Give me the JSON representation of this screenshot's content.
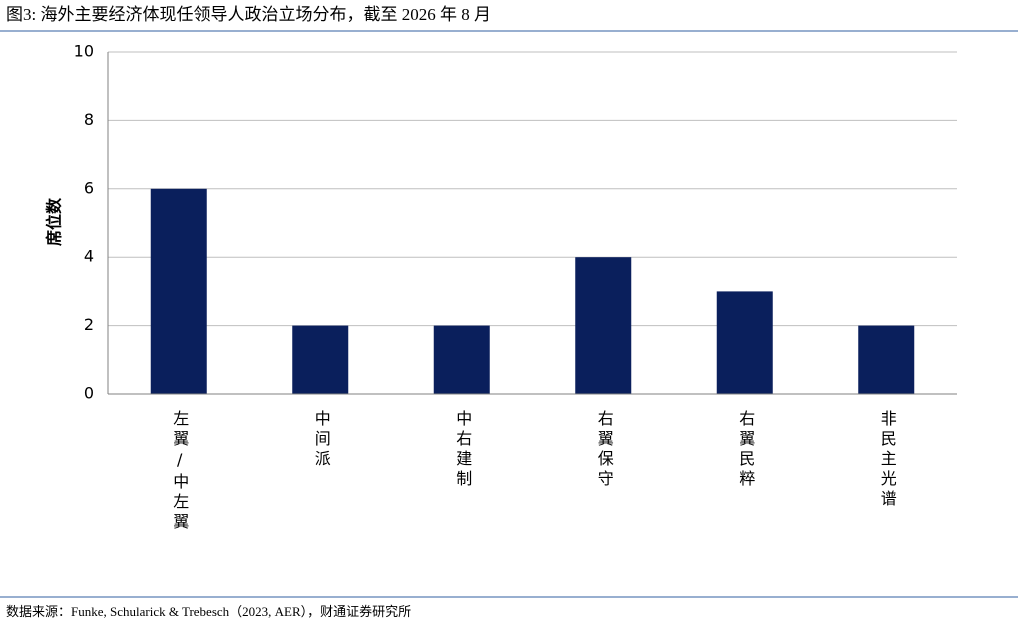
{
  "chart_data": {
    "type": "bar",
    "title": "图3: 海外主要经济体现任领导人政治立场分布，截至 2026 年 8 月",
    "ylabel": "席位数",
    "source": "数据来源：Funke, Schularick & Trebesch（2023, AER），财通证券研究所",
    "categories": [
      "左翼/中左翼",
      "中间派",
      "中右建制",
      "右翼保守",
      "右翼民粹",
      "非民主光谱"
    ],
    "values": [
      6,
      2,
      2,
      4,
      3,
      2
    ],
    "color": "#0a1f5c",
    "ylim": [
      0,
      10
    ],
    "yticks": [
      0,
      2,
      4,
      6,
      8,
      10
    ],
    "grid": true
  }
}
